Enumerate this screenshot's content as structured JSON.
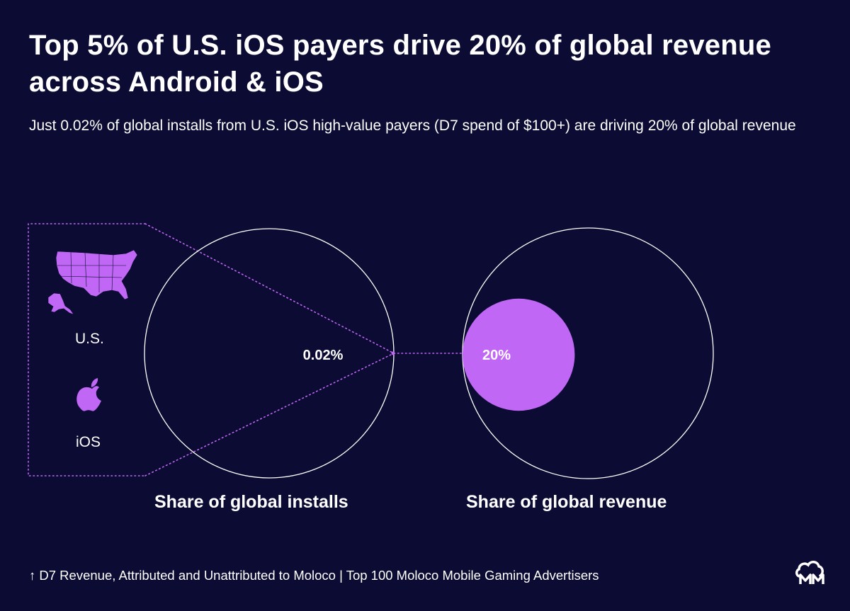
{
  "header": {
    "title": "Top 5% of U.S. iOS payers drive 20% of global revenue across Android & iOS",
    "subtitle": "Just 0.02% of global installs from U.S. iOS high-value payers (D7 spend of $100+) are driving 20% of global revenue"
  },
  "segment": {
    "country_label": "U.S.",
    "platform_label": "iOS",
    "country_icon": "us-map-icon",
    "platform_icon": "apple-icon"
  },
  "chart_data": {
    "type": "proportional-circles",
    "title": "Top 5% of U.S. iOS payers drive 20% of global revenue across Android & iOS",
    "series": [
      {
        "name": "Share of global installs",
        "value": 0.02,
        "unit": "%",
        "label": "0.02%"
      },
      {
        "name": "Share of global revenue",
        "value": 20,
        "unit": "%",
        "label": "20%"
      }
    ],
    "total": 100
  },
  "footer": {
    "footnote": "↑ D7 Revenue, Attributed and Unattributed to Moloco | Top 100 Moloco Mobile Gaming Advertisers",
    "logo_icon": "moloco-logo-icon"
  },
  "colors": {
    "background": "#0b0b33",
    "accent": "#c067f5",
    "outline": "#ffffff"
  }
}
